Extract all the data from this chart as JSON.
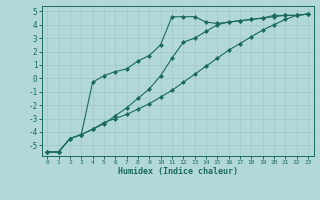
{
  "xlabel": "Humidex (Indice chaleur)",
  "ylabel": "",
  "bg_color": "#b2d8d8",
  "grid_color": "#d0e8e8",
  "line_color": "#1a6b5a",
  "xlim": [
    -0.5,
    23.5
  ],
  "ylim": [
    -5.8,
    5.4
  ],
  "xticks": [
    0,
    1,
    2,
    3,
    4,
    5,
    6,
    7,
    8,
    9,
    10,
    11,
    12,
    13,
    14,
    15,
    16,
    17,
    18,
    19,
    20,
    21,
    22,
    23
  ],
  "yticks": [
    -5,
    -4,
    -3,
    -2,
    -1,
    0,
    1,
    2,
    3,
    4,
    5
  ],
  "line1_x": [
    0,
    1,
    2,
    3,
    4,
    5,
    6,
    7,
    8,
    9,
    10,
    11,
    12,
    13,
    14,
    15,
    16,
    17,
    18,
    19,
    20,
    21,
    22,
    23
  ],
  "line1_y": [
    -5.5,
    -5.5,
    -4.5,
    -4.2,
    -3.8,
    -3.4,
    -2.8,
    -2.2,
    -1.5,
    -0.8,
    0.2,
    1.5,
    2.7,
    3.0,
    3.5,
    4.0,
    4.2,
    4.3,
    4.4,
    4.5,
    4.6,
    4.7,
    4.7,
    4.8
  ],
  "line2_x": [
    0,
    1,
    2,
    3,
    4,
    5,
    6,
    7,
    8,
    9,
    10,
    11,
    12,
    13,
    14,
    15,
    16,
    17,
    18,
    19,
    20,
    21,
    22,
    23
  ],
  "line2_y": [
    -5.5,
    -5.5,
    -4.5,
    -4.2,
    -0.3,
    0.2,
    0.5,
    0.7,
    1.3,
    1.7,
    2.5,
    4.6,
    4.6,
    4.6,
    4.2,
    4.1,
    4.2,
    4.3,
    4.4,
    4.5,
    4.7,
    4.7,
    4.7,
    4.8
  ],
  "line3_x": [
    0,
    1,
    2,
    3,
    4,
    5,
    6,
    7,
    8,
    9,
    10,
    11,
    12,
    13,
    14,
    15,
    16,
    17,
    18,
    19,
    20,
    21,
    22,
    23
  ],
  "line3_y": [
    -5.5,
    -5.5,
    -4.5,
    -4.2,
    -3.8,
    -3.3,
    -3.0,
    -2.7,
    -2.3,
    -1.9,
    -1.4,
    -0.9,
    -0.3,
    0.3,
    0.9,
    1.5,
    2.1,
    2.6,
    3.1,
    3.6,
    4.0,
    4.4,
    4.7,
    4.8
  ]
}
